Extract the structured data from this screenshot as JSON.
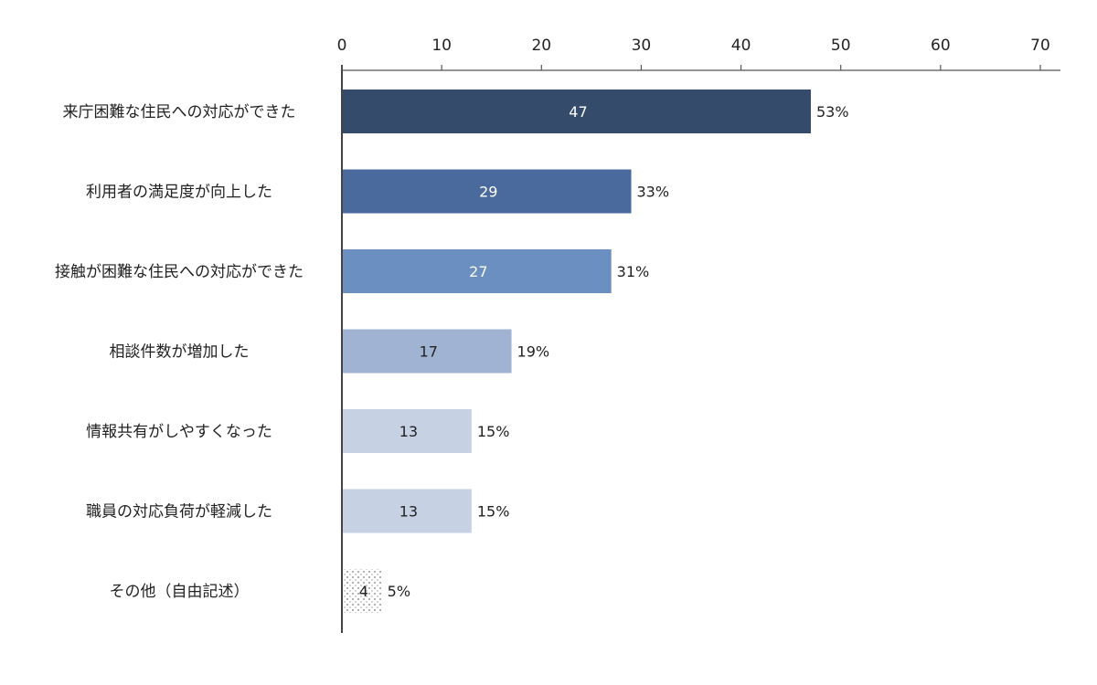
{
  "chart_data": {
    "type": "bar",
    "orientation": "horizontal",
    "categories": [
      "来庁困難な住民への対応ができた",
      "利用者の満足度が向上した",
      "接触が困難な住民への対応ができた",
      "相談件数が増加した",
      "情報共有がしやすくなった",
      "職員の対応負荷が軽減した",
      "その他（自由記述）"
    ],
    "values": [
      47,
      29,
      27,
      17,
      13,
      13,
      4
    ],
    "percent_labels": [
      "53%",
      "33%",
      "31%",
      "19%",
      "15%",
      "15%",
      "5%"
    ],
    "bar_colors": [
      "#344b6b",
      "#4a6a9d",
      "#6b8fc0",
      "#a1b3d3",
      "#c6d1e3",
      "#c6d1e3",
      "dotted"
    ],
    "value_label_colors": [
      "#ffffff",
      "#ffffff",
      "#ffffff",
      "#222222",
      "#222222",
      "#222222",
      "#222222"
    ],
    "xlim": [
      0,
      70
    ],
    "xticks": [
      0,
      10,
      20,
      30,
      40,
      50,
      60,
      70
    ],
    "axis_position": "top",
    "grid": false,
    "title": "",
    "xlabel": "",
    "ylabel": ""
  }
}
